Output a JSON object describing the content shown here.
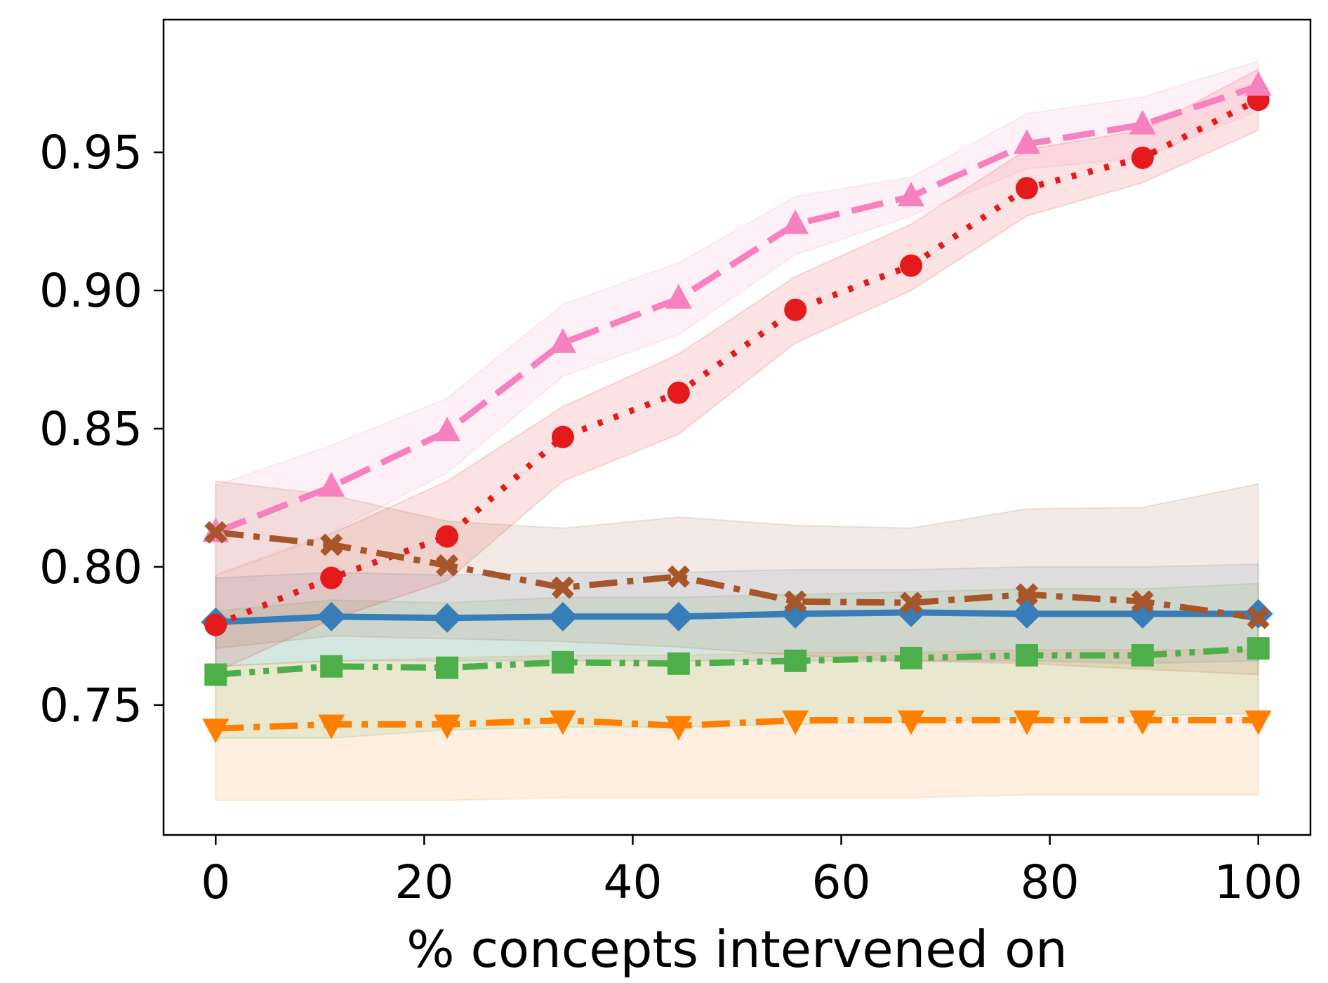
{
  "chart_data": {
    "type": "line",
    "title": "",
    "xlabel": "% concepts intervened on",
    "ylabel": "",
    "xlim": [
      -5,
      105
    ],
    "ylim": [
      0.703,
      0.998
    ],
    "x_ticks": [
      0,
      20,
      40,
      60,
      80,
      100
    ],
    "x_tick_labels": [
      "0",
      "20",
      "40",
      "60",
      "80",
      "100"
    ],
    "y_ticks": [
      0.75,
      0.8,
      0.85,
      0.9,
      0.95
    ],
    "y_tick_labels": [
      "0.75",
      "0.80",
      "0.85",
      "0.90",
      "0.95"
    ],
    "grid": false,
    "legend": "none",
    "x": [
      0,
      11.1,
      22.2,
      33.3,
      44.4,
      55.6,
      66.7,
      77.8,
      88.9,
      100
    ],
    "series": [
      {
        "name": "blue-diamond-solid",
        "color": "#377eb8",
        "marker": "diamond",
        "linestyle": "solid",
        "values": [
          0.78,
          0.782,
          0.7815,
          0.782,
          0.782,
          0.783,
          0.7835,
          0.783,
          0.783,
          0.783
        ],
        "lower": [
          0.764,
          0.766,
          0.766,
          0.766,
          0.766,
          0.766,
          0.766,
          0.766,
          0.765,
          0.766
        ],
        "upper": [
          0.796,
          0.798,
          0.797,
          0.798,
          0.798,
          0.799,
          0.799,
          0.8,
          0.8,
          0.801
        ]
      },
      {
        "name": "orange-triangle-down-dashdot",
        "color": "#ff7f00",
        "marker": "triangle-down",
        "linestyle": "dashdot",
        "values": [
          0.7415,
          0.743,
          0.743,
          0.7445,
          0.7425,
          0.7445,
          0.7445,
          0.7445,
          0.7445,
          0.7445
        ],
        "lower": [
          0.7155,
          0.7155,
          0.7155,
          0.7165,
          0.7165,
          0.7165,
          0.7165,
          0.7175,
          0.7175,
          0.7175
        ],
        "upper": [
          0.764,
          0.766,
          0.767,
          0.768,
          0.768,
          0.769,
          0.769,
          0.77,
          0.77,
          0.77
        ]
      },
      {
        "name": "green-square-dashdotdot",
        "color": "#4daf4a",
        "marker": "square",
        "linestyle": "dashdotdot",
        "values": [
          0.761,
          0.764,
          0.7635,
          0.7655,
          0.765,
          0.766,
          0.767,
          0.768,
          0.768,
          0.7705
        ],
        "lower": [
          0.738,
          0.738,
          0.741,
          0.742,
          0.742,
          0.743,
          0.744,
          0.745,
          0.746,
          0.747
        ],
        "upper": [
          0.784,
          0.788,
          0.787,
          0.789,
          0.789,
          0.79,
          0.791,
          0.792,
          0.792,
          0.794
        ]
      },
      {
        "name": "red-circle-dotted",
        "color": "#e41a1c",
        "marker": "circle",
        "linestyle": "dotted",
        "values": [
          0.779,
          0.796,
          0.811,
          0.847,
          0.863,
          0.893,
          0.909,
          0.937,
          0.948,
          0.969
        ],
        "lower": [
          0.762,
          0.781,
          0.795,
          0.831,
          0.848,
          0.881,
          0.9,
          0.927,
          0.939,
          0.958
        ],
        "upper": [
          0.797,
          0.812,
          0.831,
          0.858,
          0.877,
          0.905,
          0.924,
          0.951,
          0.958,
          0.98
        ]
      },
      {
        "name": "pink-triangle-up-dashed",
        "color": "#f781bf",
        "marker": "triangle-up",
        "linestyle": "dashed",
        "values": [
          0.8125,
          0.829,
          0.849,
          0.881,
          0.897,
          0.924,
          0.934,
          0.953,
          0.96,
          0.974
        ],
        "lower": [
          0.7975,
          0.8125,
          0.834,
          0.869,
          0.884,
          0.913,
          0.927,
          0.944,
          0.948,
          0.965
        ],
        "upper": [
          0.8295,
          0.844,
          0.861,
          0.895,
          0.91,
          0.934,
          0.941,
          0.964,
          0.97,
          0.983
        ]
      },
      {
        "name": "brown-x-dashdot",
        "color": "#a65628",
        "marker": "x",
        "linestyle": "dashdot",
        "values": [
          0.8125,
          0.808,
          0.8005,
          0.7925,
          0.7965,
          0.7875,
          0.787,
          0.79,
          0.7875,
          0.7815
        ],
        "lower": [
          0.7705,
          0.775,
          0.774,
          0.773,
          0.771,
          0.768,
          0.766,
          0.765,
          0.763,
          0.761
        ],
        "upper": [
          0.831,
          0.826,
          0.8165,
          0.814,
          0.818,
          0.815,
          0.814,
          0.821,
          0.8215,
          0.83
        ]
      }
    ]
  }
}
